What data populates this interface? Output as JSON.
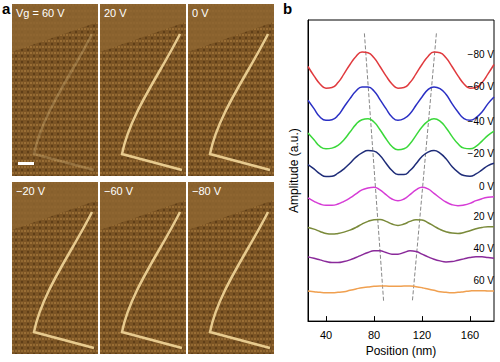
{
  "panel_a": {
    "label": "a",
    "images": [
      "Vg = 60 V",
      "20 V",
      "0 V",
      "−20 V",
      "−60 V",
      "−80 V"
    ]
  },
  "chart_data": {
    "type": "line",
    "label": "b",
    "x_label": "Position (nm)",
    "y_label": "Amplitude (a.u.)",
    "x": [
      25,
      30,
      35,
      40,
      45,
      50,
      55,
      60,
      65,
      70,
      75,
      80,
      85,
      90,
      95,
      100,
      105,
      110,
      115,
      120,
      125,
      130,
      135,
      140,
      145,
      150,
      155,
      160,
      165,
      170,
      175,
      180
    ],
    "series": [
      {
        "name": "−80 V",
        "color": "#e03a3e",
        "values": [
          7.61,
          7.33,
          7.09,
          6.96,
          6.98,
          7.13,
          7.39,
          7.67,
          7.91,
          8.04,
          8.02,
          7.87,
          7.61,
          7.33,
          7.09,
          6.96,
          6.98,
          7.13,
          7.39,
          7.67,
          7.91,
          8.04,
          8.02,
          7.87,
          7.61,
          7.33,
          7.09,
          6.96,
          6.98,
          7.13,
          7.39,
          7.67
        ]
      },
      {
        "name": "−60 V",
        "color": "#2a2fc4",
        "values": [
          6.6,
          6.35,
          6.1,
          6.0,
          6.02,
          6.15,
          6.4,
          6.65,
          6.88,
          7.0,
          7.0,
          6.88,
          6.62,
          6.35,
          6.1,
          6.0,
          6.05,
          6.2,
          6.45,
          6.7,
          6.92,
          7.0,
          6.95,
          6.78,
          6.5,
          6.25,
          6.05,
          6.0,
          6.08,
          6.25,
          6.5,
          6.7
        ]
      },
      {
        "name": "−40 V",
        "color": "#3ad83a",
        "values": [
          5.62,
          5.42,
          5.22,
          5.15,
          5.17,
          5.25,
          5.42,
          5.65,
          5.88,
          6.02,
          6.05,
          5.95,
          5.72,
          5.45,
          5.22,
          5.12,
          5.15,
          5.3,
          5.55,
          5.8,
          5.98,
          6.05,
          5.98,
          5.78,
          5.52,
          5.3,
          5.17,
          5.15,
          5.22,
          5.38,
          5.55,
          5.68
        ]
      },
      {
        "name": "−20 V",
        "color": "#1e2c78",
        "values": [
          4.68,
          4.55,
          4.4,
          4.32,
          4.33,
          4.42,
          4.55,
          4.72,
          4.9,
          5.03,
          5.1,
          5.08,
          4.95,
          4.72,
          4.5,
          4.38,
          4.38,
          4.5,
          4.7,
          4.92,
          5.05,
          5.1,
          5.02,
          4.85,
          4.62,
          4.45,
          4.35,
          4.33,
          4.4,
          4.52,
          4.65,
          4.72
        ]
      },
      {
        "name": "0 V",
        "color": "#d63cd6",
        "values": [
          3.68,
          3.58,
          3.5,
          3.46,
          3.46,
          3.5,
          3.58,
          3.68,
          3.8,
          3.92,
          3.98,
          4.0,
          3.92,
          3.78,
          3.65,
          3.6,
          3.65,
          3.78,
          3.92,
          4.0,
          3.95,
          3.82,
          3.68,
          3.56,
          3.48,
          3.45,
          3.47,
          3.52,
          3.6,
          3.66,
          3.7,
          3.72
        ]
      },
      {
        "name": "20 V",
        "color": "#7a8a3a",
        "values": [
          2.8,
          2.75,
          2.68,
          2.62,
          2.6,
          2.62,
          2.66,
          2.72,
          2.8,
          2.9,
          2.98,
          3.03,
          3.04,
          2.98,
          2.9,
          2.86,
          2.9,
          2.98,
          3.03,
          3.02,
          2.94,
          2.84,
          2.74,
          2.67,
          2.63,
          2.62,
          2.65,
          2.7,
          2.76,
          2.8,
          2.82,
          2.82
        ]
      },
      {
        "name": "40 V",
        "color": "#8a2a9a",
        "values": [
          1.92,
          1.88,
          1.83,
          1.78,
          1.75,
          1.75,
          1.78,
          1.83,
          1.9,
          1.98,
          2.05,
          2.1,
          2.1,
          2.05,
          2.0,
          2.0,
          2.05,
          2.1,
          2.08,
          2.0,
          1.92,
          1.85,
          1.8,
          1.77,
          1.78,
          1.82,
          1.86,
          1.9,
          1.92,
          1.92,
          1.9,
          1.88
        ]
      },
      {
        "name": "60 V",
        "color": "#f0a050",
        "values": [
          0.9,
          0.88,
          0.86,
          0.85,
          0.85,
          0.86,
          0.88,
          0.92,
          0.96,
          1.0,
          1.02,
          1.04,
          1.05,
          1.05,
          1.04,
          1.04,
          1.05,
          1.05,
          1.03,
          1.0,
          0.96,
          0.92,
          0.88,
          0.86,
          0.85,
          0.86,
          0.88,
          0.9,
          0.91,
          0.91,
          0.9,
          0.9
        ]
      }
    ],
    "guides": [
      {
        "x": [
          72,
          88
        ],
        "y": [
          8.6,
          0.6
        ]
      },
      {
        "x": [
          132,
          112
        ],
        "y": [
          8.6,
          0.6
        ]
      }
    ],
    "xlim": [
      25,
      180
    ],
    "xticks": [
      40,
      80,
      120,
      160
    ],
    "ylim": [
      0,
      9
    ],
    "tick_labels": "x",
    "grid": false
  }
}
